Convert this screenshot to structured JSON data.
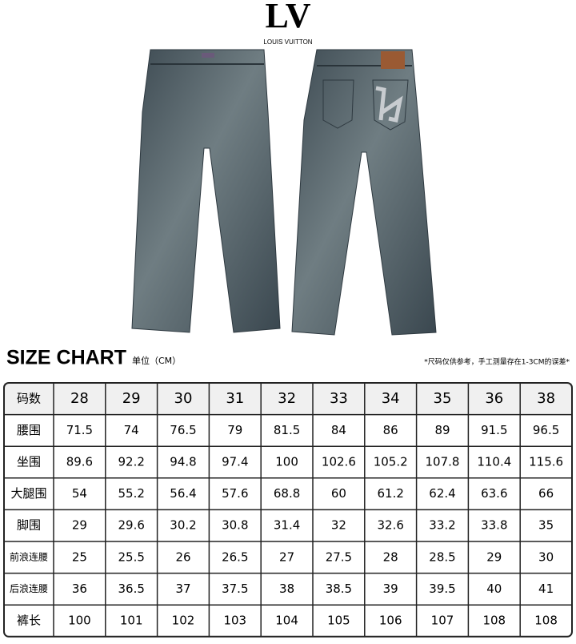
{
  "logo": {
    "mark": "LV",
    "name": "LOUIS VUITTON"
  },
  "size_chart": {
    "title": "SIZE CHART",
    "unit": "单位（CM）",
    "note": "*尺码仅供参考，手工测量存在1-3CM的误差*"
  },
  "table": {
    "header": {
      "label": "码数",
      "values": [
        28,
        29,
        30,
        31,
        32,
        33,
        34,
        35,
        36,
        38
      ]
    },
    "rows": [
      {
        "label": "腰围",
        "values": [
          71.5,
          74,
          76.5,
          79,
          81.5,
          84,
          86,
          89,
          91.5,
          96.5
        ]
      },
      {
        "label": "坐围",
        "values": [
          89.6,
          92.2,
          94.8,
          97.4,
          100,
          102.6,
          105.2,
          107.8,
          110.4,
          115.6
        ]
      },
      {
        "label": "大腿围",
        "values": [
          54,
          55.2,
          56.4,
          57.6,
          68.8,
          60,
          61.2,
          62.4,
          63.6,
          66
        ]
      },
      {
        "label": "脚围",
        "values": [
          29,
          29.6,
          30.2,
          30.8,
          31.4,
          32,
          32.6,
          33.2,
          33.8,
          35
        ]
      },
      {
        "label": "前浪连腰",
        "values": [
          25,
          25.5,
          26,
          26.5,
          27,
          27.5,
          28,
          28.5,
          29,
          30
        ]
      },
      {
        "label": "后浪连腰",
        "values": [
          36,
          36.5,
          37,
          37.5,
          38,
          38.5,
          39,
          39.5,
          40,
          41
        ]
      },
      {
        "label": "裤长",
        "values": [
          100,
          101,
          102,
          103,
          104,
          105,
          106,
          107,
          108,
          108
        ]
      }
    ]
  }
}
